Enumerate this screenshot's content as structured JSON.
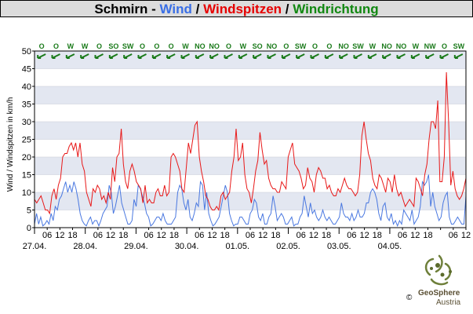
{
  "title": {
    "location": "Schmirn",
    "sep1": " - ",
    "wind": "Wind",
    "sep2": " / ",
    "gusts": "Windspitzen",
    "sep3": " / ",
    "direction": "Windrichtung"
  },
  "colors": {
    "wind": "#4a78e0",
    "gusts": "#e81818",
    "direction": "#1a7a1a",
    "band": "#e3e7f1",
    "frame": "#000000"
  },
  "chart_data": {
    "type": "line",
    "ylabel": "Wind / Windspitzen in km/h",
    "ylim": [
      0,
      50
    ],
    "yticks": [
      0,
      5,
      10,
      15,
      20,
      25,
      30,
      35,
      40,
      45,
      50
    ],
    "xlim": [
      0,
      200
    ],
    "x_tick_labels": [
      "06",
      "12",
      "18",
      "",
      "06",
      "12",
      "18",
      "",
      "06",
      "12",
      "18",
      "",
      "06",
      "12",
      "18",
      "",
      "06",
      "12",
      "18",
      "",
      "06",
      "12",
      "18",
      "",
      "06",
      "12",
      "18",
      "",
      "06",
      "12",
      "18",
      "",
      "06",
      "12"
    ],
    "date_labels": [
      "27.04.",
      "28.04.",
      "29.04.",
      "30.04.",
      "01.05.",
      "02.05.",
      "03.05.",
      "04.05."
    ],
    "direction_labels": [
      "O",
      "O",
      "W",
      "W",
      "O",
      "SO",
      "SW",
      "O",
      "O",
      "O",
      "W",
      "NO",
      "NO",
      "O",
      "W",
      "SO",
      "NO",
      "O",
      "SW",
      "O",
      "O",
      "NO",
      "SW",
      "W",
      "NO",
      "NO",
      "W",
      "NW",
      "O",
      "SW"
    ],
    "series": [
      {
        "name": "Wind",
        "color": "#4a78e0",
        "values": [
          1,
          4,
          1,
          3,
          0.5,
          1,
          2,
          1,
          4,
          2,
          6,
          5,
          8,
          9,
          11,
          13,
          10,
          12,
          10,
          13,
          11,
          8,
          4,
          2,
          1,
          0.5,
          2,
          3,
          1,
          2,
          2,
          0.5,
          2,
          4,
          5,
          6,
          12,
          10,
          4,
          6,
          9,
          12,
          7,
          5,
          3,
          1,
          1,
          2,
          8,
          6,
          12,
          11,
          9,
          7,
          4,
          3,
          0.5,
          1,
          2,
          3,
          3,
          2,
          4,
          2,
          1,
          1,
          1,
          2,
          3,
          10,
          12,
          11,
          7,
          5,
          8,
          3,
          2,
          4,
          7,
          6,
          13,
          12,
          5,
          10,
          4,
          2,
          0.5,
          1,
          2,
          3,
          6,
          9,
          12,
          10,
          4,
          2,
          0.5,
          1,
          1,
          3,
          3,
          2,
          1,
          1,
          4,
          5,
          8,
          7,
          3,
          2,
          4,
          1,
          1,
          3,
          4,
          9,
          6,
          2,
          3,
          4,
          3,
          1,
          1,
          2,
          3,
          0.5,
          1,
          1,
          3,
          4,
          9,
          6,
          3,
          7,
          4,
          5,
          3,
          2,
          3,
          5,
          3,
          2,
          3,
          2,
          1,
          1,
          2,
          3,
          7,
          4,
          3,
          3,
          2,
          4,
          2,
          3,
          5,
          3,
          3,
          4,
          7,
          7,
          10,
          11,
          10,
          8,
          4,
          2,
          6,
          7,
          3,
          2,
          4,
          1,
          2,
          0.5,
          2,
          1,
          5,
          4,
          3,
          2,
          5,
          1,
          2,
          3,
          6,
          13,
          12,
          13,
          15,
          6,
          10,
          6,
          4,
          2,
          3,
          7,
          9,
          10,
          3,
          1,
          1,
          2,
          3,
          2,
          1,
          1,
          9
        ]
      },
      {
        "name": "Windspitzen",
        "color": "#e81818",
        "values": [
          8,
          7,
          8,
          9,
          7,
          5,
          5,
          4,
          9,
          11,
          8,
          12,
          14,
          20,
          21,
          21,
          23,
          24,
          22,
          24,
          20,
          24,
          18,
          16,
          10,
          8,
          6,
          11,
          10,
          12,
          11,
          8,
          9,
          7,
          10,
          8,
          17,
          13,
          20,
          21,
          28,
          18,
          13,
          11,
          16,
          18,
          16,
          13,
          12,
          11,
          7,
          12,
          7,
          8,
          7,
          7,
          10,
          11,
          9,
          9,
          12,
          9,
          10,
          20,
          21,
          20,
          18,
          16,
          11,
          10,
          17,
          24,
          21,
          25,
          29,
          30,
          20,
          16,
          13,
          9,
          8,
          6,
          5,
          5,
          6,
          5,
          9,
          10,
          8,
          9,
          10,
          16,
          20,
          28,
          19,
          20,
          24,
          15,
          11,
          10,
          7,
          11,
          16,
          19,
          27,
          22,
          18,
          19,
          14,
          12,
          11,
          11,
          10,
          10,
          13,
          12,
          11,
          20,
          22,
          24,
          18,
          17,
          16,
          14,
          11,
          12,
          17,
          14,
          13,
          10,
          15,
          17,
          16,
          14,
          14,
          11,
          12,
          10,
          9,
          9,
          11,
          10,
          12,
          14,
          12,
          11,
          11,
          10,
          9,
          10,
          15,
          26,
          30,
          25,
          21,
          19,
          14,
          12,
          11,
          15,
          14,
          12,
          10,
          14,
          13,
          10,
          15,
          11,
          9,
          10,
          8,
          6,
          7,
          8,
          7,
          6,
          14,
          13,
          11,
          9,
          15,
          18,
          25,
          30,
          30,
          28,
          36,
          13,
          13,
          20,
          44,
          30,
          12,
          16,
          11,
          9,
          8,
          9,
          11,
          14
        ]
      }
    ]
  },
  "logo": {
    "brand": "GeoSphere",
    "country": "Austria",
    "copyright": "©"
  }
}
